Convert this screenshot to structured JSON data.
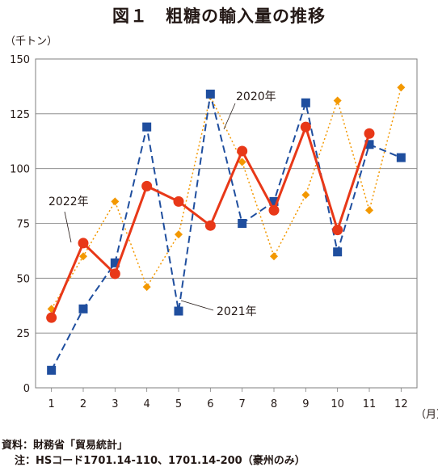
{
  "title": "図１　粗糖の輸入量の推移",
  "y_unit": "（千トン）",
  "x_unit": "（月）",
  "source": "資料：財務省「貿易統計」",
  "note": "注：HSコード1701.14-110、1701.14-200（豪州のみ）",
  "colors": {
    "s2020": "#f39800",
    "s2021": "#1f4e9e",
    "s2022": "#e83818",
    "grid": "#7f7f7f"
  },
  "chart_data": {
    "type": "line",
    "title": "図１　粗糖の輸入量の推移",
    "xlabel": "（月）",
    "ylabel": "（千トン）",
    "x": [
      1,
      2,
      3,
      4,
      5,
      6,
      7,
      8,
      9,
      10,
      11,
      12
    ],
    "ylim": [
      0,
      150
    ],
    "yticks": [
      0,
      25,
      50,
      75,
      100,
      125,
      150
    ],
    "grid": true,
    "legend": "inline annotations",
    "series": [
      {
        "name": "2020年",
        "style": "dotted-diamond",
        "values": [
          36,
          60,
          85,
          46,
          70,
          133,
          103,
          60,
          88,
          131,
          81,
          137
        ]
      },
      {
        "name": "2021年",
        "style": "dashed-square",
        "values": [
          8,
          36,
          57,
          119,
          35,
          134,
          75,
          85,
          130,
          62,
          111,
          105
        ]
      },
      {
        "name": "2022年",
        "style": "solid-circle",
        "values": [
          32,
          66,
          52,
          92,
          85,
          74,
          108,
          81,
          119,
          72,
          116,
          null
        ]
      }
    ]
  }
}
